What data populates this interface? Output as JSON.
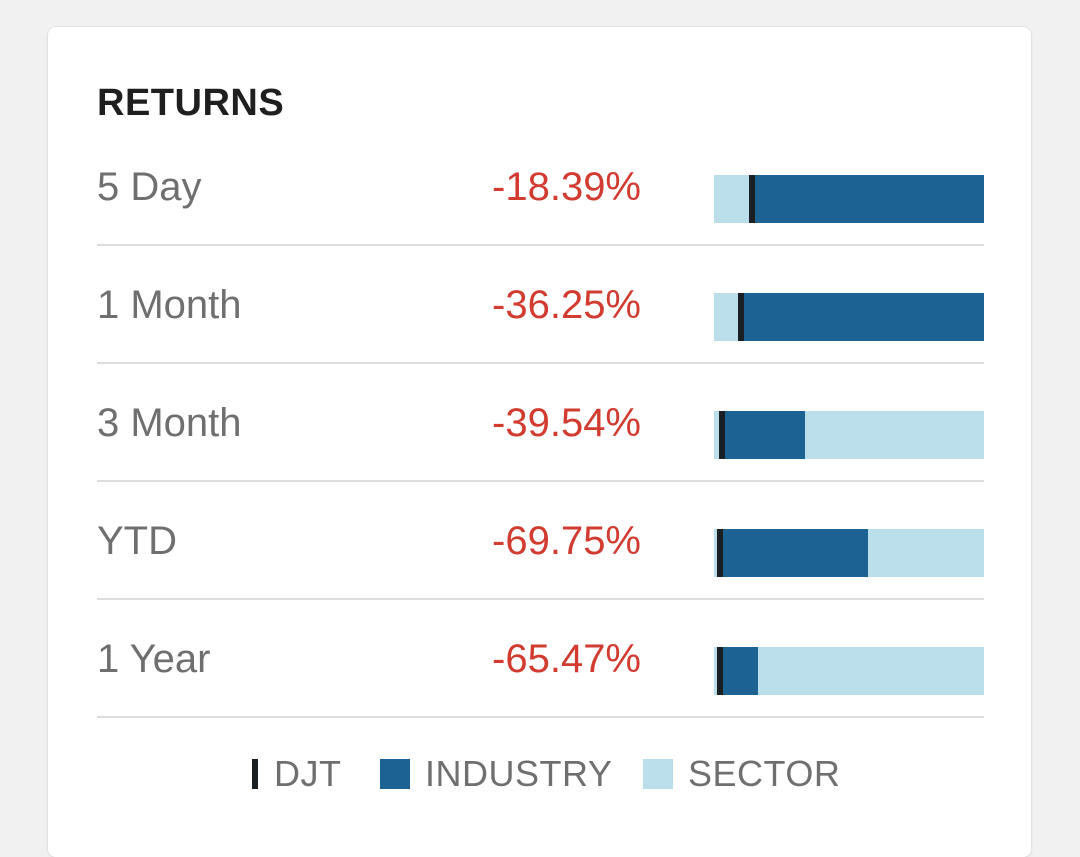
{
  "header": {
    "title": "RETURNS"
  },
  "colors": {
    "company": "#1a1f24",
    "industry": "#1c6393",
    "sector": "#badeea",
    "negative": "#d13b30",
    "label": "#6f6f6f"
  },
  "rows": [
    {
      "label": "5 Day",
      "value": "-18.39%",
      "company_pos": 0.13,
      "industry_frac": 0.89,
      "sector_frac": 1.0
    },
    {
      "label": "1 Month",
      "value": "-36.25%",
      "company_pos": 0.09,
      "industry_frac": 0.93,
      "sector_frac": 1.0
    },
    {
      "label": "3 Month",
      "value": "-39.54%",
      "company_pos": 0.02,
      "industry_frac": 0.32,
      "sector_frac": 1.0
    },
    {
      "label": "YTD",
      "value": "-69.75%",
      "company_pos": 0.01,
      "industry_frac": 0.56,
      "sector_frac": 1.0
    },
    {
      "label": "1 Year",
      "value": "-65.47%",
      "company_pos": 0.01,
      "industry_frac": 0.15,
      "sector_frac": 1.0
    }
  ],
  "legend": {
    "company_label": "DJT",
    "industry_label": "INDUSTRY",
    "sector_label": "SECTOR"
  }
}
